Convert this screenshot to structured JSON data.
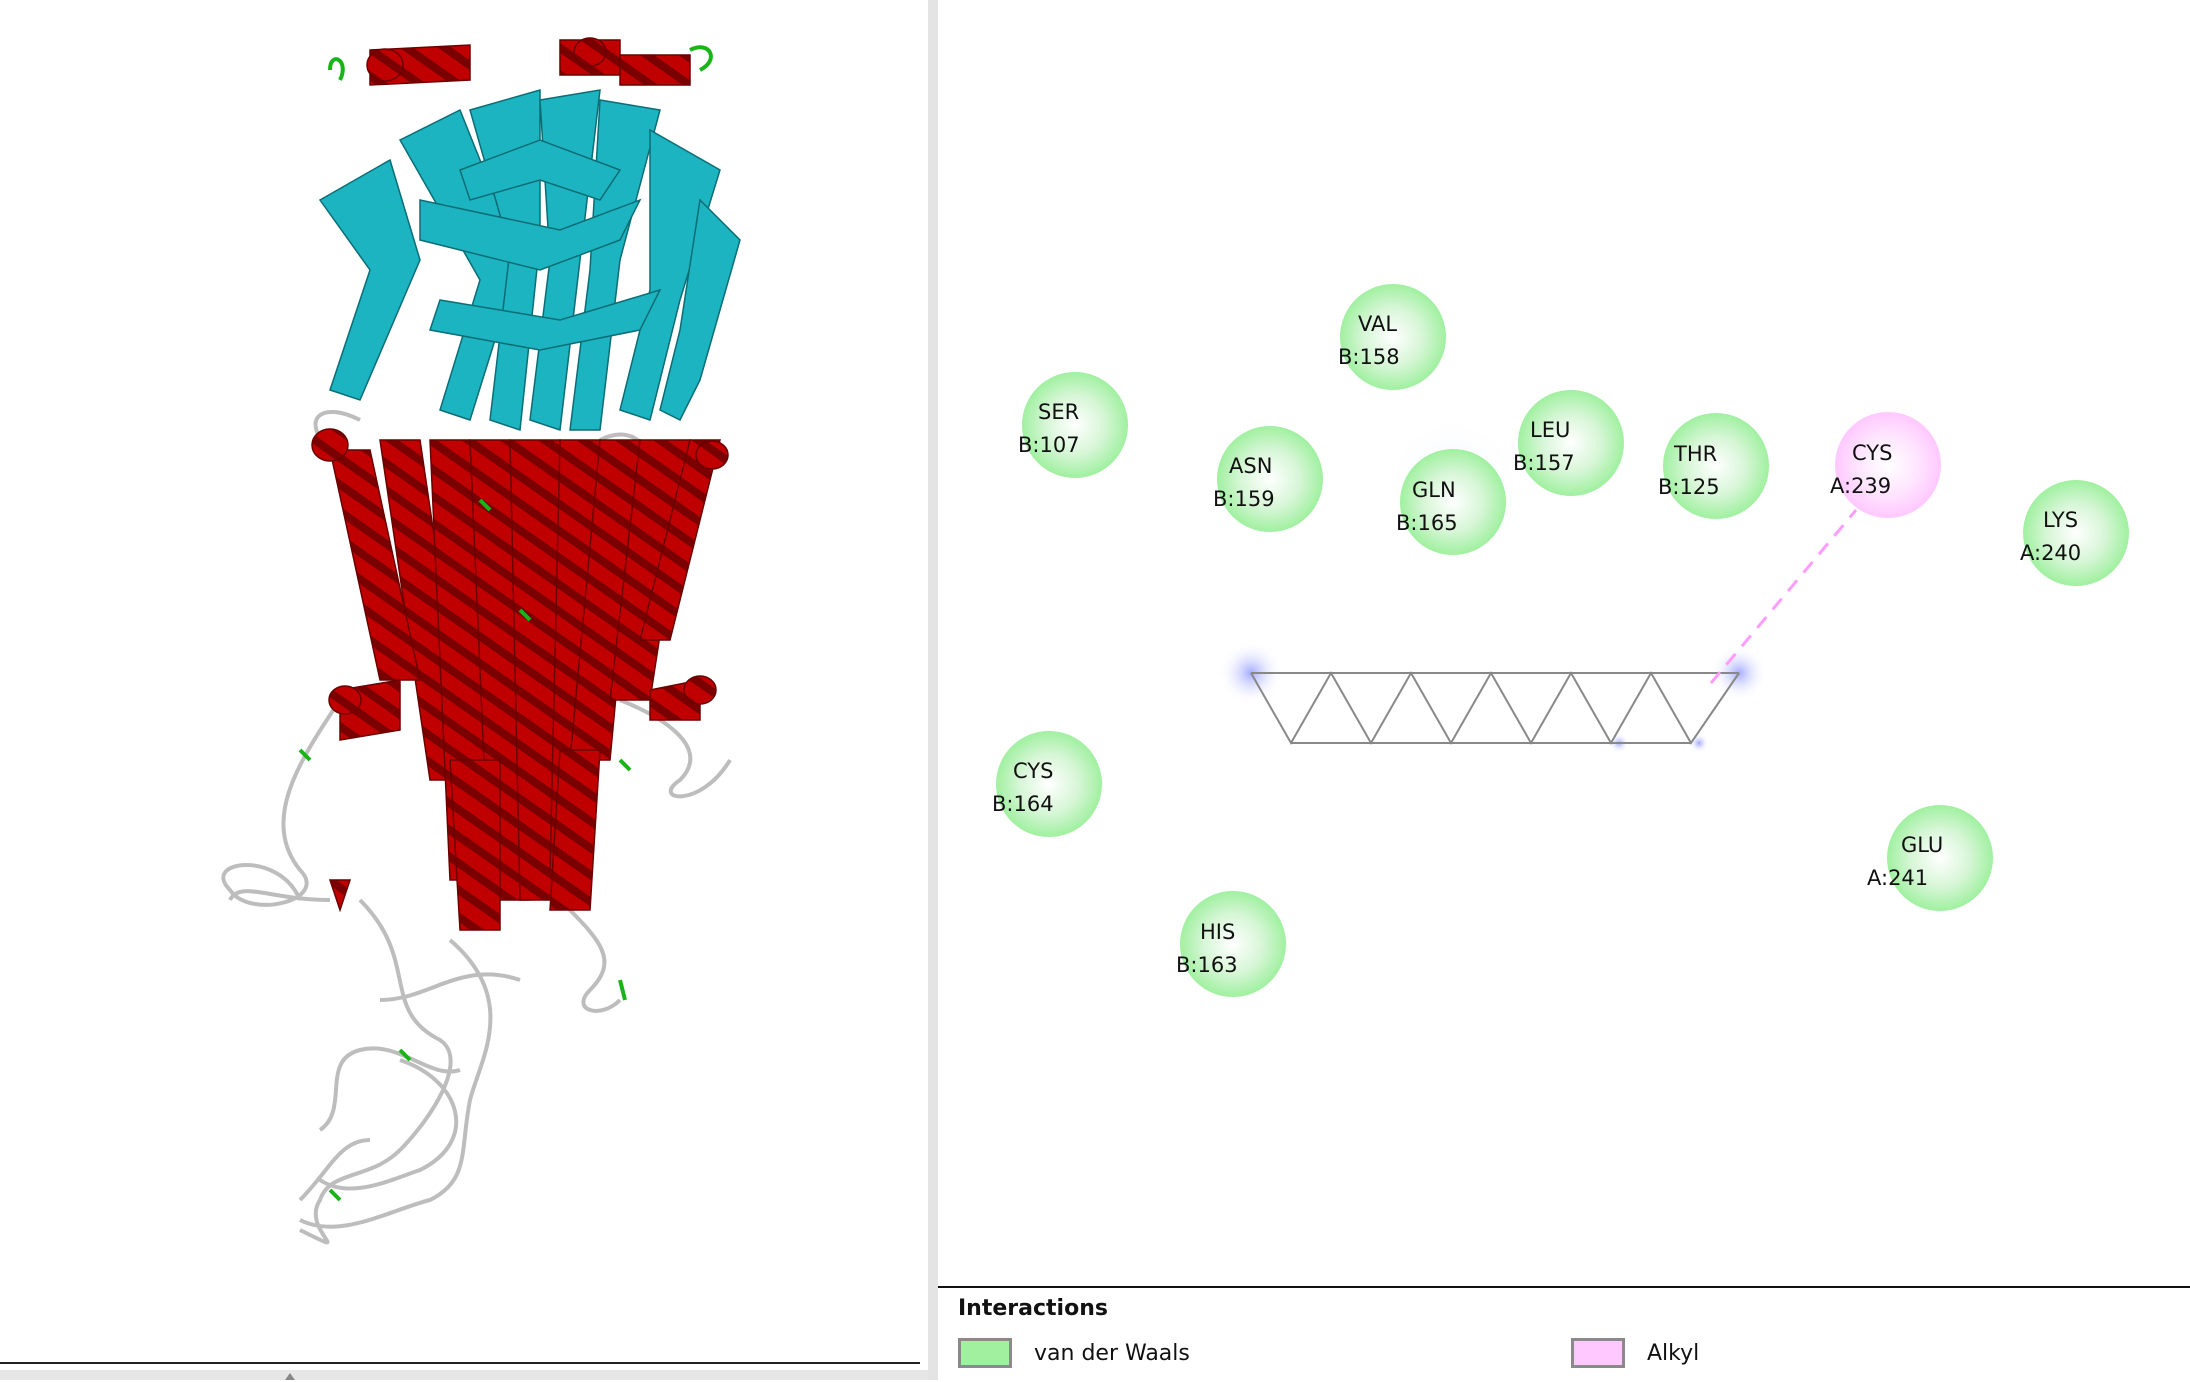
{
  "colors": {
    "van_der_waals": "#a0f0a0",
    "alkyl": "#ffc8ff",
    "helix": "#c00000",
    "sheet": "#1cb4c0",
    "coil": "#c8c8c8",
    "turn": "#18b418"
  },
  "residues": [
    {
      "name": "VAL",
      "id": "B:158",
      "type": "van_der_waals"
    },
    {
      "name": "SER",
      "id": "B:107",
      "type": "van_der_waals"
    },
    {
      "name": "ASN",
      "id": "B:159",
      "type": "van_der_waals"
    },
    {
      "name": "GLN",
      "id": "B:165",
      "type": "van_der_waals"
    },
    {
      "name": "LEU",
      "id": "B:157",
      "type": "van_der_waals"
    },
    {
      "name": "THR",
      "id": "B:125",
      "type": "van_der_waals"
    },
    {
      "name": "CYS",
      "id": "A:239",
      "type": "alkyl"
    },
    {
      "name": "LYS",
      "id": "A:240",
      "type": "van_der_waals"
    },
    {
      "name": "CYS",
      "id": "B:164",
      "type": "van_der_waals"
    },
    {
      "name": "GLU",
      "id": "A:241",
      "type": "van_der_waals"
    },
    {
      "name": "HIS",
      "id": "B:163",
      "type": "van_der_waals"
    }
  ],
  "legend": {
    "title": "Interactions",
    "items": [
      {
        "label": "van der Waals",
        "type": "van_der_waals"
      },
      {
        "label": "Alkyl",
        "type": "alkyl"
      }
    ]
  }
}
